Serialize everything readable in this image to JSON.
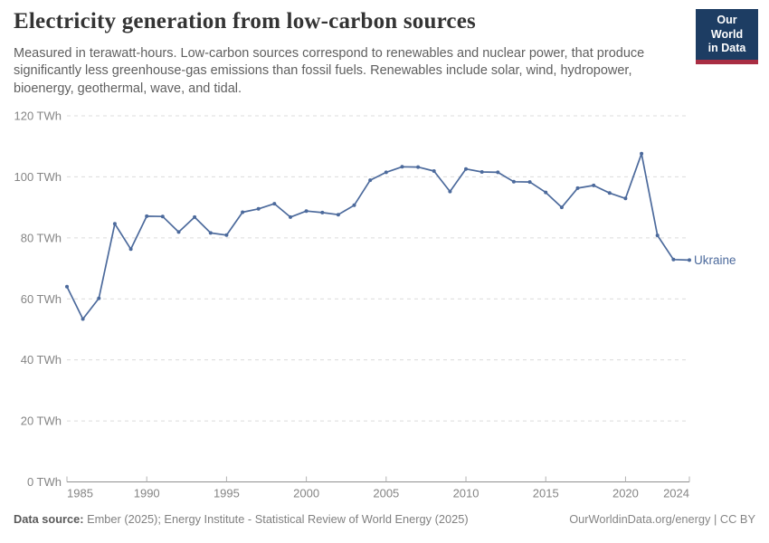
{
  "header": {
    "title": "Electricity generation from low-carbon sources",
    "subtitle": "Measured in terawatt-hours. Low-carbon sources correspond to renewables and nuclear power, that produce significantly less greenhouse-gas emissions than fossil fuels. Renewables include solar, wind, hydropower, bioenergy, geothermal, wave, and tidal.",
    "logo": {
      "line1": "Our World",
      "line2": "in Data"
    }
  },
  "chart_data": {
    "type": "line",
    "title": "Electricity generation from low-carbon sources, Ukraine, 1985-2024",
    "unit": "TWh",
    "entity": "Ukraine",
    "x": [
      1985,
      1986,
      1987,
      1988,
      1989,
      1990,
      1991,
      1992,
      1993,
      1994,
      1995,
      1996,
      1997,
      1998,
      1999,
      2000,
      2001,
      2002,
      2003,
      2004,
      2005,
      2006,
      2007,
      2008,
      2009,
      2010,
      2011,
      2012,
      2013,
      2014,
      2015,
      2016,
      2017,
      2018,
      2019,
      2020,
      2021,
      2022,
      2023,
      2024
    ],
    "series": [
      {
        "name": "Ukraine",
        "values": [
          64.0,
          53.4,
          60.2,
          84.6,
          76.3,
          87.1,
          87.0,
          81.9,
          86.8,
          81.6,
          80.9,
          88.4,
          89.5,
          91.2,
          86.8,
          88.8,
          88.3,
          87.6,
          90.7,
          98.9,
          101.5,
          103.3,
          103.2,
          101.9,
          95.2,
          102.6,
          101.6,
          101.5,
          98.4,
          98.3,
          94.9,
          90.0,
          96.3,
          97.2,
          94.7,
          92.9,
          107.6,
          80.8,
          72.9,
          72.7
        ]
      }
    ],
    "ylim": [
      0,
      120
    ],
    "yticks": [
      0,
      20,
      40,
      60,
      80,
      100,
      120
    ],
    "xticks": [
      1985,
      1990,
      1995,
      2000,
      2005,
      2010,
      2015,
      2020,
      2024
    ],
    "grid": true,
    "legend_position": "end-of-line",
    "line_color": "#4C6A9C",
    "grid_color": "#dcdcdc",
    "axis_color": "#8f8f8f",
    "tick_label_color": "#858585"
  },
  "footer": {
    "datasource_label": "Data source:",
    "datasource_text": " Ember (2025); Energy Institute - Statistical Review of World Energy (2025)",
    "link_text": "OurWorldinData.org/energy | CC BY"
  }
}
